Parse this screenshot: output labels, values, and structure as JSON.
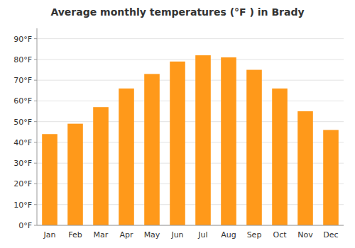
{
  "chart_data": {
    "type": "bar",
    "title": "Average monthly temperatures (°F ) in Brady",
    "categories": [
      "Jan",
      "Feb",
      "Mar",
      "Apr",
      "May",
      "Jun",
      "Jul",
      "Aug",
      "Sep",
      "Oct",
      "Nov",
      "Dec"
    ],
    "values": [
      44,
      49,
      57,
      66,
      73,
      79,
      82,
      81,
      75,
      66,
      55,
      46
    ],
    "color": "#ff991a",
    "ylim": [
      0,
      95
    ],
    "yticks": [
      {
        "value": 0,
        "label": "0°F"
      },
      {
        "value": 10,
        "label": "10°F"
      },
      {
        "value": 20,
        "label": "20°F"
      },
      {
        "value": 30,
        "label": "30°F"
      },
      {
        "value": 40,
        "label": "40°F"
      },
      {
        "value": 50,
        "label": "50°F"
      },
      {
        "value": 60,
        "label": "60°F"
      },
      {
        "value": 70,
        "label": "70°F"
      },
      {
        "value": 80,
        "label": "80°F"
      },
      {
        "value": 90,
        "label": "90°F"
      }
    ],
    "grid": true
  }
}
